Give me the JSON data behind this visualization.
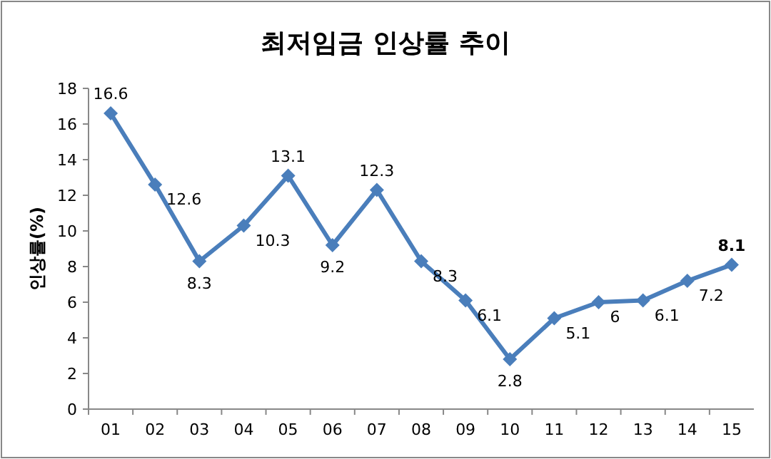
{
  "chart_data": {
    "type": "line",
    "title": "최저임금 인상률 추이",
    "ylabel": "인상률(%)",
    "categories": [
      "01",
      "02",
      "03",
      "04",
      "05",
      "06",
      "07",
      "08",
      "09",
      "10",
      "11",
      "12",
      "13",
      "14",
      "15"
    ],
    "series": [
      {
        "color": "#4a7ebb",
        "values": [
          16.6,
          12.6,
          8.3,
          10.3,
          13.1,
          9.2,
          12.3,
          8.3,
          6.1,
          2.8,
          5.1,
          6,
          6.1,
          7.2,
          8.1
        ]
      }
    ],
    "ylim": [
      0,
      18
    ],
    "yticks": [
      0,
      2,
      4,
      6,
      8,
      10,
      12,
      14,
      16,
      18
    ],
    "marker": "diamond",
    "data_labels": true,
    "grid": false
  }
}
